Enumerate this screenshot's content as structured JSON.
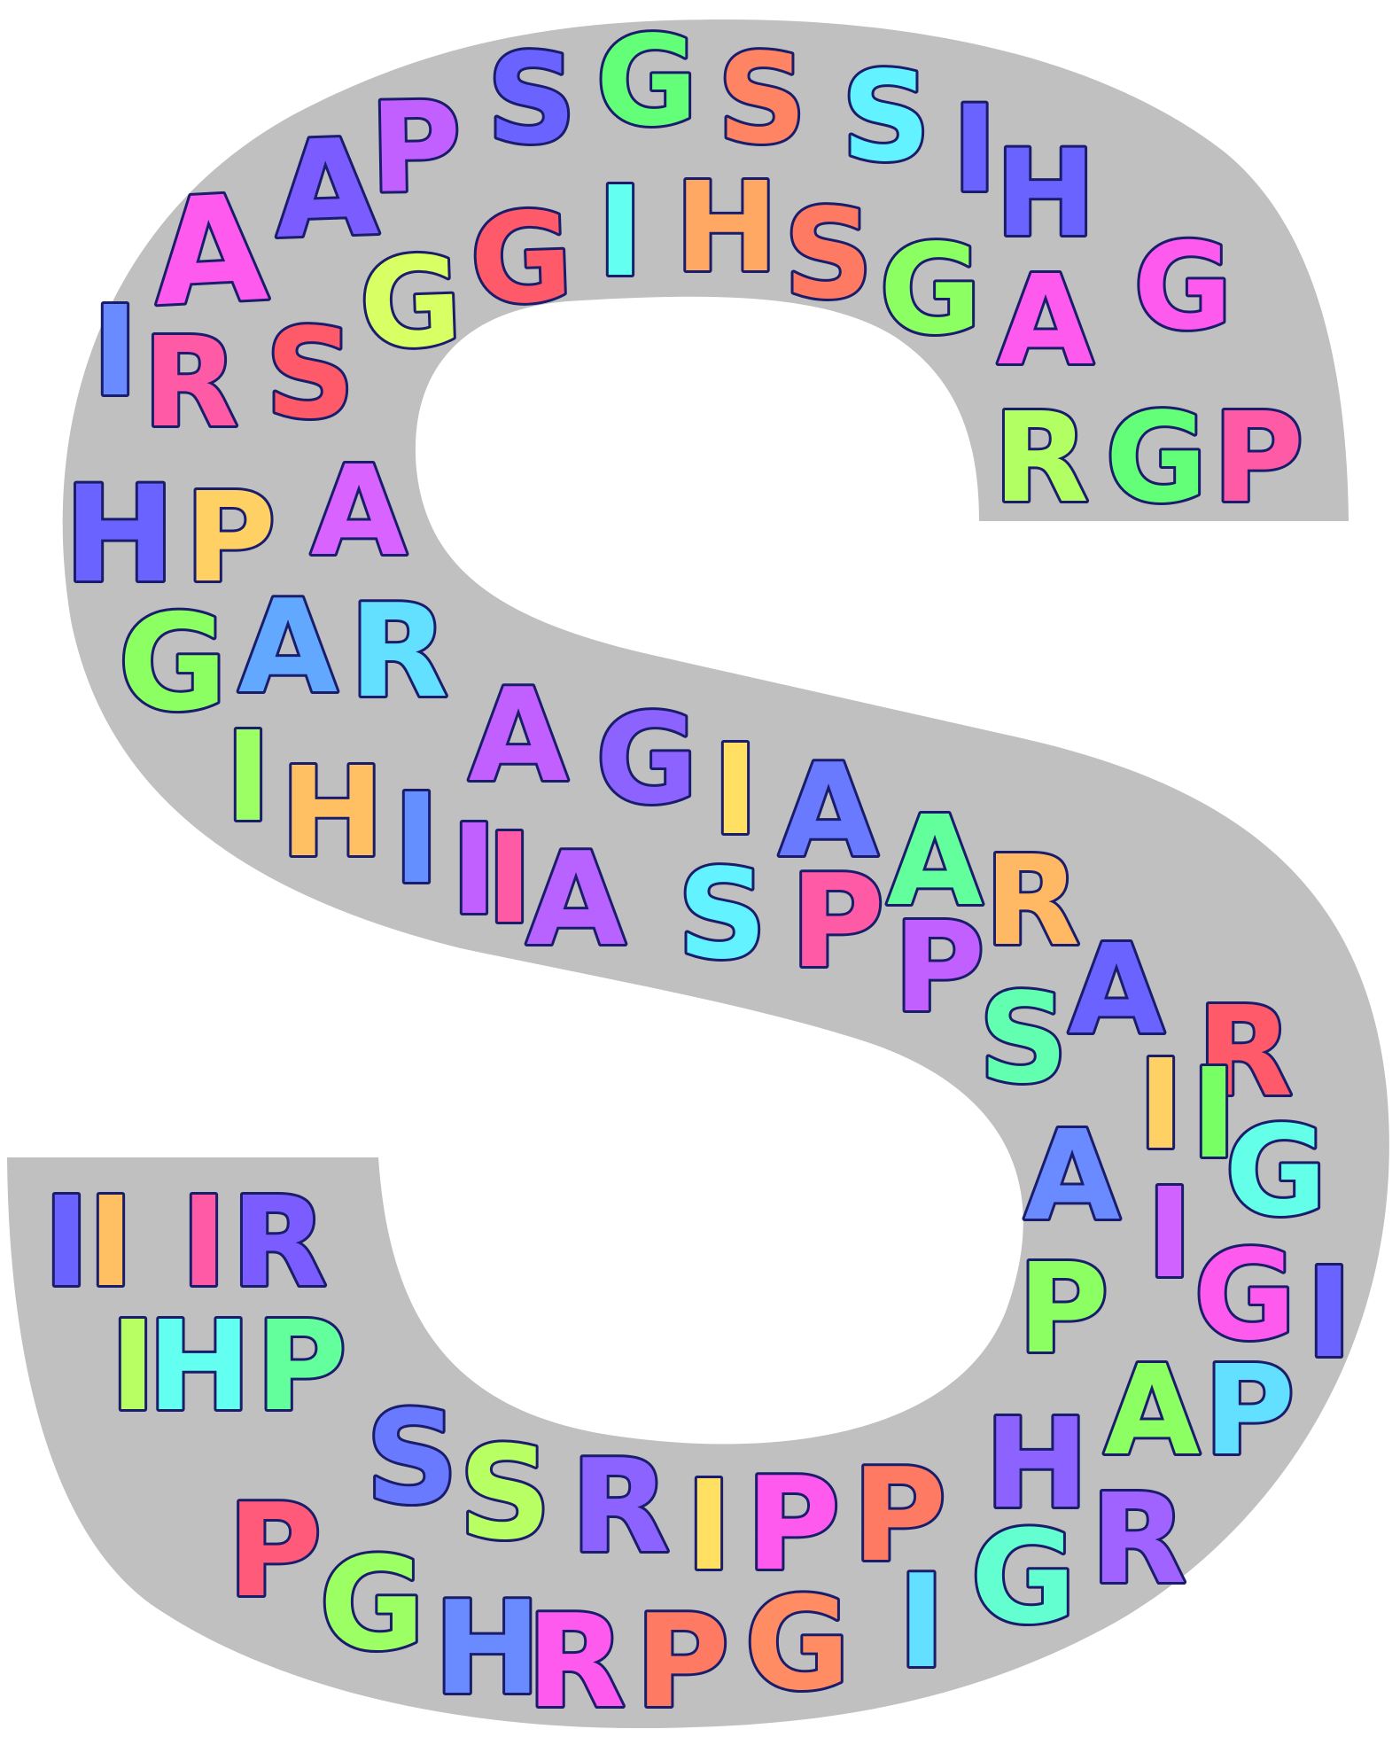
{
  "canvas": {
    "background": "#ffffff",
    "shape_fill": "#c0c0c0",
    "outline_color": "#1a1d6b"
  },
  "letters": [
    {
      "char": "A",
      "color": "#ff5aee"
    },
    {
      "char": "A",
      "color": "#7a5cff"
    },
    {
      "char": "P",
      "color": "#c260ff"
    },
    {
      "char": "S",
      "color": "#6a63ff"
    },
    {
      "char": "G",
      "color": "#63ff78"
    },
    {
      "char": "S",
      "color": "#ff8463"
    },
    {
      "char": "S",
      "color": "#63f2ff"
    },
    {
      "char": "I",
      "color": "#6a63ff"
    },
    {
      "char": "H",
      "color": "#6a63ff"
    },
    {
      "char": "I",
      "color": "#6a8bff"
    },
    {
      "char": "R",
      "color": "#ff5aa6"
    },
    {
      "char": "S",
      "color": "#ff5a6a"
    },
    {
      "char": "G",
      "color": "#d8ff63"
    },
    {
      "char": "G",
      "color": "#ff5a6a"
    },
    {
      "char": "I",
      "color": "#63fff0"
    },
    {
      "char": "H",
      "color": "#ffa863"
    },
    {
      "char": "S",
      "color": "#ff7a63"
    },
    {
      "char": "G",
      "color": "#8cff63"
    },
    {
      "char": "A",
      "color": "#ff5aee"
    },
    {
      "char": "G",
      "color": "#ff5aee"
    },
    {
      "char": "R",
      "color": "#b2ff63"
    },
    {
      "char": "G",
      "color": "#63ff78"
    },
    {
      "char": "P",
      "color": "#ff5aa6"
    },
    {
      "char": "H",
      "color": "#6a63ff"
    },
    {
      "char": "P",
      "color": "#ffd063"
    },
    {
      "char": "A",
      "color": "#d863ff"
    },
    {
      "char": "G",
      "color": "#8cff63"
    },
    {
      "char": "A",
      "color": "#63a8ff"
    },
    {
      "char": "R",
      "color": "#63dfff"
    },
    {
      "char": "I",
      "color": "#9cff63"
    },
    {
      "char": "H",
      "color": "#ffc063"
    },
    {
      "char": "I",
      "color": "#638fff"
    },
    {
      "char": "I",
      "color": "#c260ff"
    },
    {
      "char": "I",
      "color": "#ff5aa6"
    },
    {
      "char": "A",
      "color": "#c260ff"
    },
    {
      "char": "G",
      "color": "#8c63ff"
    },
    {
      "char": "I",
      "color": "#ffe063"
    },
    {
      "char": "A",
      "color": "#6a7aff"
    },
    {
      "char": "A",
      "color": "#63ff9c"
    },
    {
      "char": "R",
      "color": "#ffb863"
    },
    {
      "char": "A",
      "color": "#b863ff"
    },
    {
      "char": "S",
      "color": "#63f2ff"
    },
    {
      "char": "P",
      "color": "#ff5aa6"
    },
    {
      "char": "P",
      "color": "#c260ff"
    },
    {
      "char": "A",
      "color": "#6a63ff"
    },
    {
      "char": "S",
      "color": "#63ffb0"
    },
    {
      "char": "R",
      "color": "#ff5a6a"
    },
    {
      "char": "I",
      "color": "#ffd063"
    },
    {
      "char": "I",
      "color": "#78ff63"
    },
    {
      "char": "G",
      "color": "#63ffe8"
    },
    {
      "char": "A",
      "color": "#6a8bff"
    },
    {
      "char": "I",
      "color": "#d063ff"
    },
    {
      "char": "P",
      "color": "#8cff63"
    },
    {
      "char": "G",
      "color": "#ff5aee"
    },
    {
      "char": "I",
      "color": "#6a63ff"
    },
    {
      "char": "P",
      "color": "#63dfff"
    },
    {
      "char": "A",
      "color": "#8cff63"
    },
    {
      "char": "H",
      "color": "#8c63ff"
    },
    {
      "char": "R",
      "color": "#a063ff"
    },
    {
      "char": "I",
      "color": "#6a63ff"
    },
    {
      "char": "I",
      "color": "#ffc063"
    },
    {
      "char": "I",
      "color": "#ff5aa6"
    },
    {
      "char": "R",
      "color": "#7a5cff"
    },
    {
      "char": "I",
      "color": "#b8ff63"
    },
    {
      "char": "H",
      "color": "#63fff0"
    },
    {
      "char": "P",
      "color": "#63ff9c"
    },
    {
      "char": "S",
      "color": "#6a7aff"
    },
    {
      "char": "S",
      "color": "#b8ff63"
    },
    {
      "char": "R",
      "color": "#8c63ff"
    },
    {
      "char": "I",
      "color": "#ffe063"
    },
    {
      "char": "P",
      "color": "#ff5aee"
    },
    {
      "char": "P",
      "color": "#ff7a63"
    },
    {
      "char": "P",
      "color": "#ff5a7a"
    },
    {
      "char": "G",
      "color": "#9cff63"
    },
    {
      "char": "H",
      "color": "#6a8bff"
    },
    {
      "char": "R",
      "color": "#ff5aee"
    },
    {
      "char": "P",
      "color": "#ff7a63"
    },
    {
      "char": "G",
      "color": "#ff8c63"
    },
    {
      "char": "I",
      "color": "#63dfff"
    },
    {
      "char": "G",
      "color": "#63ffd0"
    }
  ]
}
